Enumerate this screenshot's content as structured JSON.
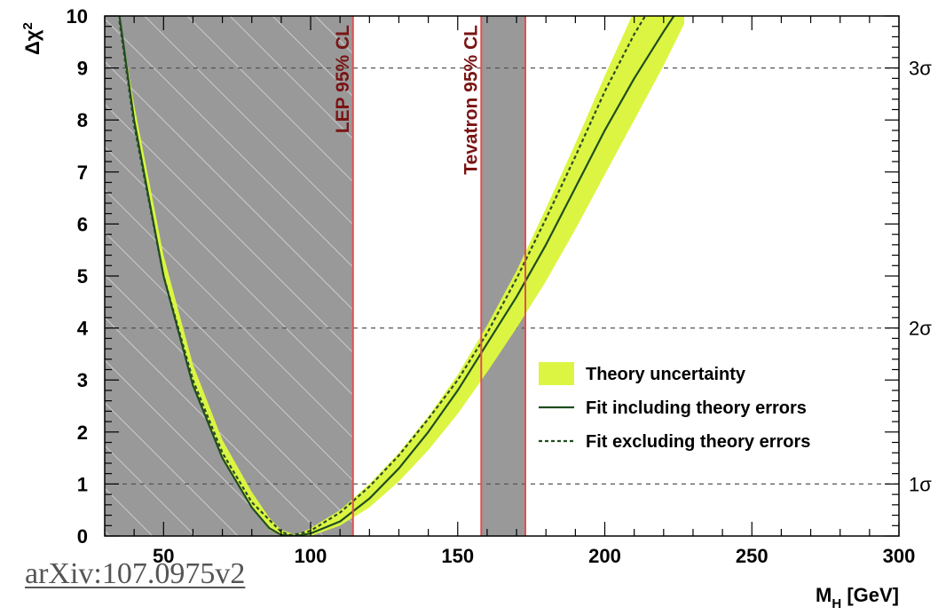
{
  "chart_data": {
    "type": "line",
    "title": "",
    "xlabel": "M_H [GeV]",
    "xlabel_main": "M",
    "xlabel_sub": "H",
    "xlabel_unit": " [GeV]",
    "ylabel": "Δχ²",
    "ylabel_main": "Δχ",
    "ylabel_sup": "2",
    "xlim": [
      30,
      300
    ],
    "ylim": [
      0,
      10
    ],
    "x_ticks": [
      "50",
      "100",
      "150",
      "200",
      "250",
      "300"
    ],
    "y_ticks": [
      "0",
      "1",
      "2",
      "3",
      "4",
      "5",
      "6",
      "7",
      "8",
      "9",
      "10"
    ],
    "sigma_lines": [
      {
        "y": 1,
        "label": "1σ"
      },
      {
        "y": 4,
        "label": "2σ"
      },
      {
        "y": 9,
        "label": "3σ"
      }
    ],
    "excluded_regions": [
      {
        "x0": 30,
        "x1": 114.4,
        "label": "LEP 95% CL"
      },
      {
        "x0": 158,
        "x1": 173,
        "label": "Tevatron 95% CL"
      }
    ],
    "series": [
      {
        "name": "Fit including theory errors",
        "style": "solid",
        "x": [
          35,
          40,
          50,
          60,
          70,
          80,
          86,
          90,
          95,
          100,
          110,
          120,
          130,
          140,
          150,
          160,
          170,
          180,
          190,
          200,
          210,
          220,
          227
        ],
        "y": [
          10,
          8.0,
          5.0,
          2.9,
          1.5,
          0.55,
          0.15,
          0.02,
          0,
          0.05,
          0.28,
          0.72,
          1.3,
          2.0,
          2.8,
          3.7,
          4.6,
          5.6,
          6.7,
          7.8,
          8.8,
          9.7,
          10.3
        ]
      },
      {
        "name": "Fit excluding theory errors",
        "style": "dashed",
        "x": [
          35,
          40,
          50,
          60,
          70,
          80,
          90,
          93,
          95,
          100,
          110,
          120,
          130,
          140,
          150,
          160,
          170,
          180,
          190,
          200,
          210,
          218
        ],
        "y": [
          9.9,
          7.9,
          5.0,
          3.0,
          1.6,
          0.65,
          0.08,
          0.02,
          0.03,
          0.1,
          0.45,
          0.95,
          1.55,
          2.25,
          3.0,
          3.9,
          4.95,
          6.1,
          7.3,
          8.55,
          9.65,
          10.4
        ]
      },
      {
        "name": "Theory uncertainty",
        "style": "band",
        "x": [
          35,
          40,
          50,
          60,
          70,
          80,
          86,
          90,
          95,
          100,
          110,
          120,
          130,
          140,
          150,
          160,
          170,
          180,
          190,
          200,
          210,
          220,
          227
        ],
        "y_low": [
          10,
          8.0,
          5.0,
          2.9,
          1.5,
          0.55,
          0.12,
          0,
          0,
          0,
          0.2,
          0.55,
          1.05,
          1.65,
          2.35,
          3.15,
          4.0,
          4.9,
          5.9,
          6.95,
          8.0,
          9.05,
          9.85
        ],
        "y_high": [
          10,
          8.3,
          5.4,
          3.3,
          1.85,
          0.85,
          0.35,
          0.12,
          0.02,
          0.15,
          0.5,
          1.0,
          1.6,
          2.3,
          3.1,
          4.05,
          5.1,
          6.3,
          7.55,
          8.85,
          10.1,
          11.3,
          12.0
        ]
      }
    ],
    "legend": {
      "placement": "right-center",
      "entries": [
        {
          "label": "Theory uncertainty",
          "style": "band"
        },
        {
          "label": "Fit including theory errors",
          "style": "solid"
        },
        {
          "label": "Fit excluding theory errors",
          "style": "dashed"
        }
      ]
    },
    "colors": {
      "band": "#dcf542",
      "solid": "#1f4d1f",
      "excluded": "#999999",
      "hatch": "#d8d8d8",
      "boundary": "#e05050",
      "band_label": "#7a1414"
    }
  },
  "footer": {
    "reference": "arXiv:107.0975v2"
  }
}
